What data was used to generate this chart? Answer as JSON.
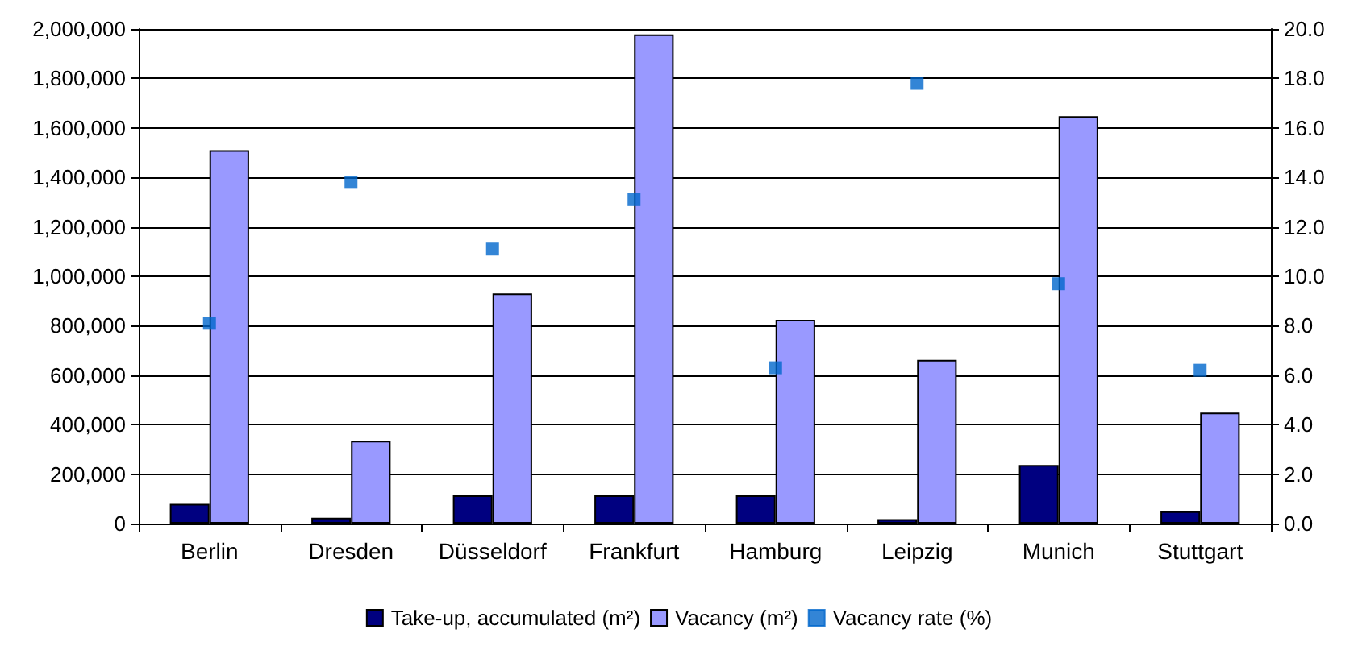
{
  "chart_data": {
    "type": "bar",
    "categories": [
      "Berlin",
      "Dresden",
      "Düsseldorf",
      "Frankfurt",
      "Hamburg",
      "Leipzig",
      "Munich",
      "Stuttgart"
    ],
    "series": [
      {
        "name": "Take-up, accumulated (m²)",
        "color": "#000080",
        "values": [
          80000,
          24000,
          114000,
          114000,
          114000,
          18000,
          237000,
          50000
        ]
      },
      {
        "name": "Vacancy (m²)",
        "color": "#9999ff",
        "values": [
          1510000,
          335000,
          931000,
          1978000,
          824000,
          662000,
          1647000,
          449000
        ]
      },
      {
        "name": "Vacancy rate (%)",
        "type": "scatter",
        "axis": "y2",
        "color": "#0066cc",
        "values": [
          8.1,
          13.8,
          11.1,
          13.1,
          6.3,
          17.8,
          9.7,
          6.2
        ]
      }
    ],
    "ylim": [
      0,
      2000000
    ],
    "yticks": [
      {
        "value": 0,
        "label": "0"
      },
      {
        "value": 200000,
        "label": "200,000"
      },
      {
        "value": 400000,
        "label": "400,000"
      },
      {
        "value": 600000,
        "label": "600,000"
      },
      {
        "value": 800000,
        "label": "800,000"
      },
      {
        "value": 1000000,
        "label": "1,000,000"
      },
      {
        "value": 1200000,
        "label": "1,200,000"
      },
      {
        "value": 1400000,
        "label": "1,400,000"
      },
      {
        "value": 1600000,
        "label": "1,600,000"
      },
      {
        "value": 1800000,
        "label": "1,800,000"
      },
      {
        "value": 2000000,
        "label": "2,000,000"
      }
    ],
    "y2lim": [
      0,
      20
    ],
    "y2ticks": [
      {
        "value": 0,
        "label": "0.0"
      },
      {
        "value": 2,
        "label": "2.0"
      },
      {
        "value": 4,
        "label": "4.0"
      },
      {
        "value": 6,
        "label": "6.0"
      },
      {
        "value": 8,
        "label": "8.0"
      },
      {
        "value": 10,
        "label": "10.0"
      },
      {
        "value": 12,
        "label": "12.0"
      },
      {
        "value": 14,
        "label": "14.0"
      },
      {
        "value": 16,
        "label": "16.0"
      },
      {
        "value": 18,
        "label": "18.0"
      },
      {
        "value": 20,
        "label": "20.0"
      }
    ],
    "grid": "y",
    "legend": "bottom",
    "marker": "square"
  }
}
